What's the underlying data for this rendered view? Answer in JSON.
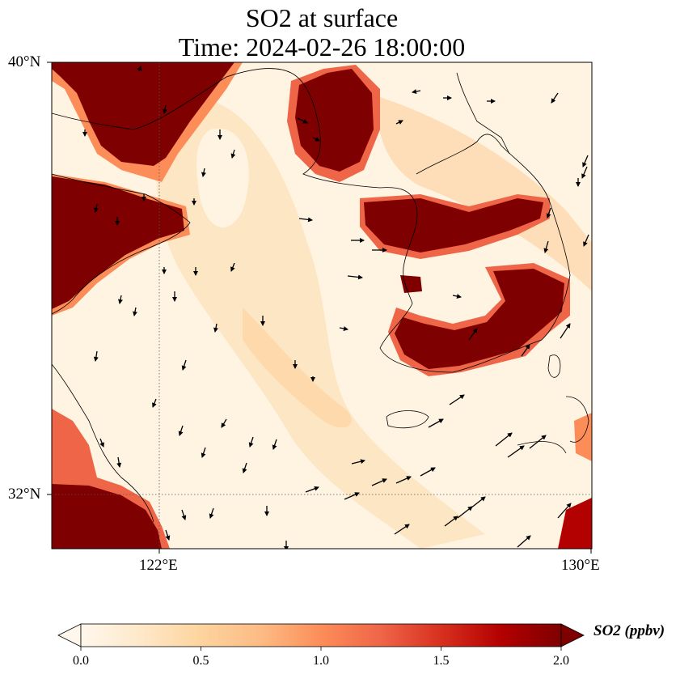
{
  "title": {
    "line1": "SO2 at surface",
    "line2": "Time: 2024-02-26 18:00:00"
  },
  "axes": {
    "lat_ticks": [
      "40°N",
      "32°N"
    ],
    "lon_ticks": [
      "122°E",
      "130°E"
    ],
    "lat_range": [
      31,
      40
    ],
    "lon_range": [
      120,
      130
    ]
  },
  "colorbar": {
    "label": "SO2 (ppbv)",
    "ticks": [
      "0.0",
      "0.5",
      "1.0",
      "1.5",
      "2.0"
    ],
    "range": [
      0.0,
      2.0
    ],
    "colormap": "OrRd",
    "extend": "both",
    "colors": [
      "#fff7ec",
      "#fee8c8",
      "#fdd49e",
      "#fdbb84",
      "#fc8d59",
      "#ef6548",
      "#d7301f",
      "#b30000",
      "#7f0000"
    ]
  },
  "wind_vectors": true,
  "gridlines": "dotted"
}
